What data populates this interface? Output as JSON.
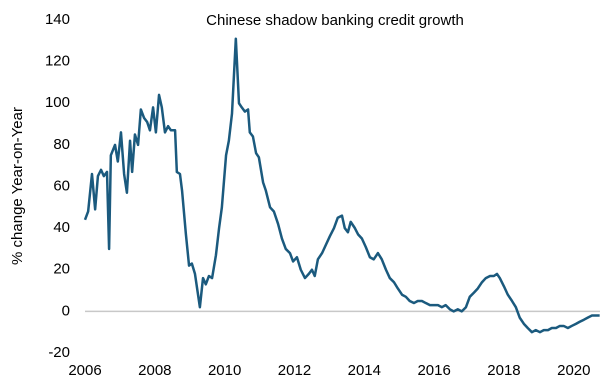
{
  "chart_data": {
    "type": "line",
    "title": "Chinese shadow banking credit growth",
    "y_label": "% change Year-on-Year",
    "x": [
      2006.0,
      2006.09,
      2006.2,
      2006.29,
      2006.37,
      2006.46,
      2006.54,
      2006.63,
      2006.69,
      2006.74,
      2006.86,
      2006.94,
      2007.03,
      2007.12,
      2007.2,
      2007.29,
      2007.35,
      2007.43,
      2007.52,
      2007.6,
      2007.69,
      2007.78,
      2007.86,
      2007.95,
      2008.03,
      2008.12,
      2008.2,
      2008.29,
      2008.38,
      2008.46,
      2008.58,
      2008.63,
      2008.72,
      2008.78,
      2008.89,
      2008.98,
      2009.06,
      2009.15,
      2009.29,
      2009.38,
      2009.46,
      2009.55,
      2009.64,
      2009.75,
      2009.84,
      2009.92,
      2010.04,
      2010.12,
      2010.21,
      2010.32,
      2010.41,
      2010.49,
      2010.58,
      2010.67,
      2010.72,
      2010.81,
      2010.9,
      2010.98,
      2011.1,
      2011.18,
      2011.3,
      2011.41,
      2011.53,
      2011.64,
      2011.75,
      2011.87,
      2011.96,
      2012.07,
      2012.18,
      2012.3,
      2012.41,
      2012.5,
      2012.58,
      2012.67,
      2012.79,
      2012.9,
      2013.01,
      2013.13,
      2013.24,
      2013.36,
      2013.44,
      2013.53,
      2013.61,
      2013.73,
      2013.82,
      2013.93,
      2014.04,
      2014.16,
      2014.27,
      2014.39,
      2014.5,
      2014.62,
      2014.73,
      2014.85,
      2014.96,
      2015.08,
      2015.19,
      2015.3,
      2015.42,
      2015.53,
      2015.65,
      2015.76,
      2015.88,
      2015.99,
      2016.11,
      2016.22,
      2016.33,
      2016.45,
      2016.56,
      2016.68,
      2016.79,
      2016.91,
      2017.02,
      2017.14,
      2017.25,
      2017.37,
      2017.48,
      2017.6,
      2017.71,
      2017.8,
      2017.88,
      2018.0,
      2018.11,
      2018.23,
      2018.34,
      2018.45,
      2018.57,
      2018.68,
      2018.8,
      2018.91,
      2019.03,
      2019.14,
      2019.26,
      2019.37,
      2019.49,
      2019.6,
      2019.71,
      2019.83,
      2019.94,
      2020.06,
      2020.17,
      2020.29,
      2020.4,
      2020.52,
      2020.74
    ],
    "series": [
      {
        "color": "#1b5a7e",
        "values": [
          44,
          48,
          66,
          49,
          65,
          68,
          65,
          67,
          30,
          75,
          80,
          72,
          86,
          66,
          57,
          82,
          67,
          85,
          80,
          97,
          93,
          91,
          87,
          98,
          86,
          104,
          98,
          86,
          89,
          87,
          87,
          67,
          66,
          58,
          37,
          22,
          23,
          18,
          2,
          16,
          13,
          17,
          16,
          27,
          40,
          50,
          75,
          82,
          95,
          131,
          100,
          98,
          96,
          97,
          86,
          84,
          76,
          74,
          62,
          58,
          50,
          48,
          42,
          35,
          30,
          28,
          24,
          26,
          20,
          16,
          18,
          20,
          17,
          25,
          28,
          32,
          36,
          40,
          45,
          46,
          40,
          38,
          43,
          40,
          37,
          35,
          31,
          26,
          25,
          28,
          25,
          20,
          16,
          14,
          11,
          8,
          7,
          5,
          4,
          5,
          5,
          4,
          3,
          3,
          3,
          2,
          3,
          1,
          0,
          1,
          0,
          2,
          7,
          9,
          11,
          14,
          16,
          17,
          17,
          18,
          16,
          12,
          8,
          5,
          2,
          -3,
          -6,
          -8,
          -10,
          -9,
          -10,
          -9,
          -9,
          -8,
          -8,
          -7,
          -7,
          -8,
          -7,
          -6,
          -5,
          -4,
          -3,
          -2,
          -2
        ]
      }
    ],
    "xlim": [
      2006,
      2020.75
    ],
    "xticks": [
      2006,
      2008,
      2010,
      2012,
      2014,
      2016,
      2018,
      2020
    ],
    "ylim": [
      -20,
      140
    ],
    "yticks": [
      -20,
      0,
      20,
      40,
      60,
      80,
      100,
      120,
      140
    ],
    "grid": false,
    "zero_line": true
  }
}
